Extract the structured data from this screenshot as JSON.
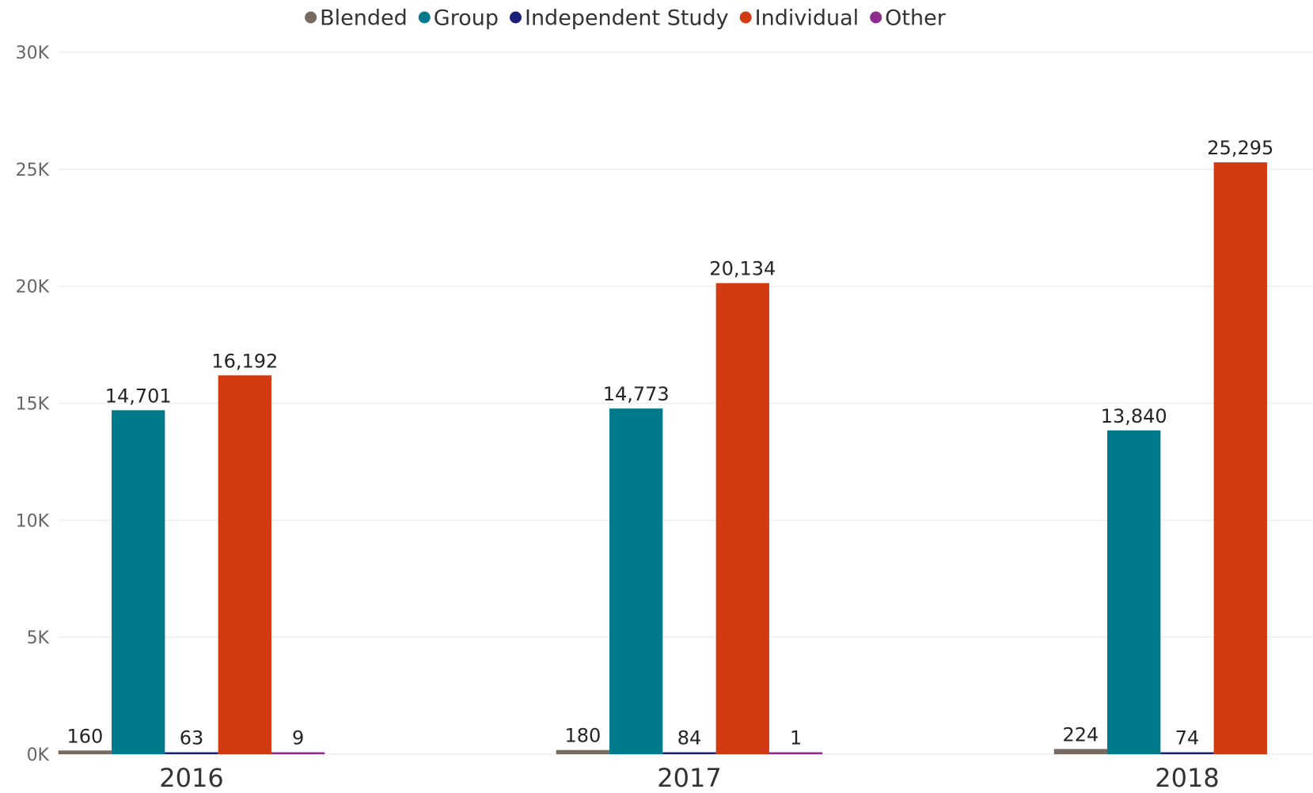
{
  "chart_data": {
    "type": "bar",
    "categories": [
      "2016",
      "2017",
      "2018"
    ],
    "series": [
      {
        "name": "Blended",
        "color": "#766b63",
        "values": [
          160,
          180,
          224
        ]
      },
      {
        "name": "Group",
        "color": "#007a8a",
        "values": [
          14701,
          14773,
          13840
        ]
      },
      {
        "name": "Independent Study",
        "color": "#1a1f7a",
        "values": [
          63,
          84,
          74
        ]
      },
      {
        "name": "Individual",
        "color": "#d23b12",
        "values": [
          16192,
          20134,
          25295
        ]
      },
      {
        "name": "Other",
        "color": "#8e2c8e",
        "values": [
          9,
          1,
          null
        ]
      }
    ],
    "data_labels": [
      [
        "160",
        "180",
        "224"
      ],
      [
        "14,701",
        "14,773",
        "13,840"
      ],
      [
        "63",
        "84",
        "74"
      ],
      [
        "16,192",
        "20,134",
        "25,295"
      ],
      [
        "9",
        "1",
        ""
      ]
    ],
    "y_ticks": [
      0,
      5000,
      10000,
      15000,
      20000,
      25000,
      30000
    ],
    "y_tick_labels": [
      "0K",
      "5K",
      "10K",
      "15K",
      "20K",
      "25K",
      "30K"
    ],
    "ylim": [
      0,
      30000
    ],
    "grid": true,
    "legend_position": "top-center",
    "title": "",
    "xlabel": "",
    "ylabel": ""
  }
}
